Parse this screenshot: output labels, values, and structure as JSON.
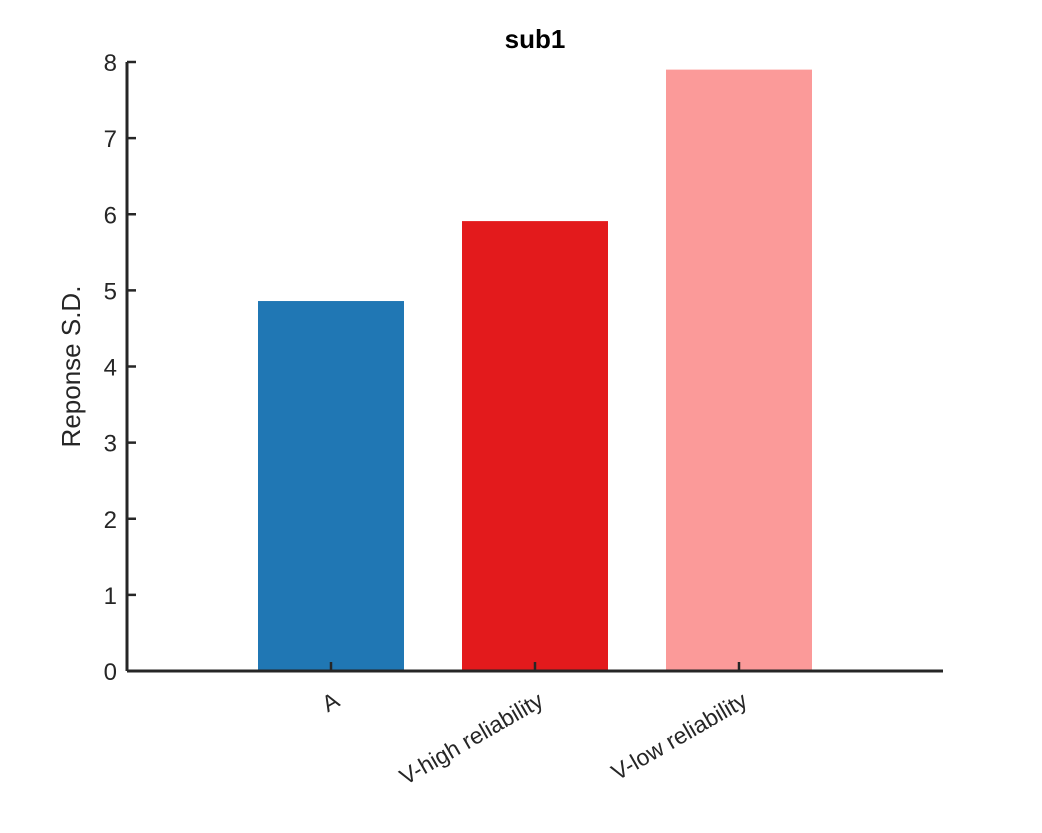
{
  "chart_data": {
    "type": "bar",
    "title": "sub1",
    "xlabel": "",
    "ylabel": "Reponse S.D.",
    "categories": [
      "A",
      "V-high reliability",
      "V-low reliability"
    ],
    "values": [
      4.86,
      5.91,
      7.9
    ],
    "colors": [
      "#2077b4",
      "#e31a1c",
      "#fb9a99"
    ],
    "ylim": [
      0,
      8
    ],
    "yticks": [
      "0",
      "1",
      "2",
      "3",
      "4",
      "5",
      "6",
      "7",
      "8"
    ],
    "grid": false,
    "legend": "none"
  }
}
